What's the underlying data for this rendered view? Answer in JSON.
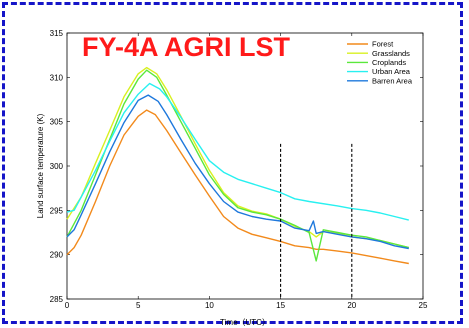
{
  "chart_data": {
    "type": "line",
    "title": "FY-4A AGRI LST",
    "title_color": "#ff1a1a",
    "xlabel": "Time（UTC）",
    "ylabel": "Land surface temperature (K)",
    "xlim": [
      0,
      25
    ],
    "ylim": [
      285,
      315
    ],
    "xticks": [
      "0",
      "5",
      "10",
      "15",
      "20",
      "25"
    ],
    "yticks": [
      "285",
      "290",
      "295",
      "300",
      "305",
      "310",
      "315"
    ],
    "legend_position": "top-right",
    "vlines": [
      15,
      20
    ],
    "series": [
      {
        "name": "Forest",
        "color": "#f28a1c",
        "points": [
          [
            0,
            290.0
          ],
          [
            0.5,
            290.8
          ],
          [
            1,
            292.2
          ],
          [
            2,
            296.0
          ],
          [
            3,
            300.0
          ],
          [
            4,
            303.5
          ],
          [
            5,
            305.6
          ],
          [
            5.6,
            306.3
          ],
          [
            6.2,
            305.8
          ],
          [
            7,
            304.0
          ],
          [
            8,
            301.5
          ],
          [
            9,
            299.0
          ],
          [
            10,
            296.6
          ],
          [
            11,
            294.3
          ],
          [
            12,
            293.0
          ],
          [
            13,
            292.3
          ],
          [
            14,
            291.9
          ],
          [
            15,
            291.5
          ],
          [
            16,
            291.0
          ],
          [
            17,
            290.8
          ],
          [
            17.5,
            290.6
          ],
          [
            18,
            290.6
          ],
          [
            19,
            290.4
          ],
          [
            20,
            290.2
          ],
          [
            21,
            289.9
          ],
          [
            22,
            289.6
          ],
          [
            23,
            289.3
          ],
          [
            24,
            289.0
          ]
        ]
      },
      {
        "name": "Grasslands",
        "color": "#d8f020",
        "points": [
          [
            0,
            294.0
          ],
          [
            1,
            296.5
          ],
          [
            2,
            300.3
          ],
          [
            3,
            304.0
          ],
          [
            4,
            307.8
          ],
          [
            5,
            310.4
          ],
          [
            5.6,
            311.1
          ],
          [
            6.3,
            310.4
          ],
          [
            7,
            308.6
          ],
          [
            8,
            305.6
          ],
          [
            9,
            302.5
          ],
          [
            10,
            299.5
          ],
          [
            11,
            297.0
          ],
          [
            12,
            295.5
          ],
          [
            13,
            294.9
          ],
          [
            14,
            294.6
          ],
          [
            15,
            294.0
          ],
          [
            16,
            293.2
          ],
          [
            17,
            292.6
          ],
          [
            17.5,
            292.0
          ],
          [
            18,
            292.6
          ],
          [
            19,
            292.4
          ],
          [
            20,
            292.0
          ],
          [
            21,
            291.8
          ],
          [
            22,
            291.6
          ],
          [
            23,
            291.2
          ],
          [
            24,
            290.8
          ]
        ]
      },
      {
        "name": "Croplands",
        "color": "#5ae83c",
        "points": [
          [
            0,
            292.0
          ],
          [
            1,
            295.0
          ],
          [
            2,
            299.0
          ],
          [
            3,
            303.0
          ],
          [
            4,
            307.0
          ],
          [
            5,
            309.8
          ],
          [
            5.6,
            310.8
          ],
          [
            6.3,
            310.0
          ],
          [
            7,
            308.0
          ],
          [
            8,
            305.0
          ],
          [
            9,
            302.0
          ],
          [
            10,
            299.0
          ],
          [
            11,
            296.8
          ],
          [
            12,
            295.3
          ],
          [
            13,
            294.8
          ],
          [
            14,
            294.5
          ],
          [
            15,
            294.0
          ],
          [
            16,
            293.3
          ],
          [
            17,
            292.5
          ],
          [
            17.5,
            289.3
          ],
          [
            18,
            292.8
          ],
          [
            19,
            292.5
          ],
          [
            20,
            292.2
          ],
          [
            21,
            292.0
          ],
          [
            22,
            291.6
          ],
          [
            23,
            291.2
          ],
          [
            24,
            290.8
          ]
        ]
      },
      {
        "name": "Urban Area",
        "color": "#28f0f0",
        "points": [
          [
            0,
            294.8
          ],
          [
            0.5,
            295.0
          ],
          [
            1,
            296.5
          ],
          [
            2,
            299.5
          ],
          [
            3,
            302.8
          ],
          [
            4,
            306.0
          ],
          [
            5,
            308.1
          ],
          [
            5.8,
            309.3
          ],
          [
            6.5,
            308.7
          ],
          [
            7,
            307.8
          ],
          [
            8,
            305.5
          ],
          [
            9,
            303.0
          ],
          [
            10,
            300.6
          ],
          [
            11,
            299.3
          ],
          [
            12,
            298.5
          ],
          [
            13,
            298.0
          ],
          [
            14,
            297.5
          ],
          [
            15,
            297.0
          ],
          [
            16,
            296.3
          ],
          [
            17,
            296.0
          ],
          [
            19,
            295.5
          ],
          [
            20,
            295.2
          ],
          [
            21,
            295.0
          ],
          [
            22,
            294.7
          ],
          [
            23,
            294.3
          ],
          [
            24,
            293.9
          ]
        ]
      },
      {
        "name": "Barren Area",
        "color": "#1e78dc",
        "points": [
          [
            0,
            292.0
          ],
          [
            0.5,
            292.8
          ],
          [
            1,
            294.5
          ],
          [
            2,
            298.0
          ],
          [
            3,
            301.6
          ],
          [
            4,
            304.9
          ],
          [
            5,
            307.4
          ],
          [
            5.7,
            308.0
          ],
          [
            6.4,
            307.3
          ],
          [
            7,
            305.8
          ],
          [
            8,
            303.0
          ],
          [
            9,
            300.3
          ],
          [
            10,
            298.0
          ],
          [
            11,
            296.0
          ],
          [
            12,
            294.8
          ],
          [
            13,
            294.3
          ],
          [
            14,
            294.0
          ],
          [
            15,
            293.8
          ],
          [
            16,
            293.0
          ],
          [
            17,
            292.7
          ],
          [
            17.3,
            293.8
          ],
          [
            17.5,
            292.4
          ],
          [
            18,
            292.6
          ],
          [
            19,
            292.3
          ],
          [
            20,
            292.0
          ],
          [
            21,
            291.8
          ],
          [
            22,
            291.5
          ],
          [
            23,
            291.0
          ],
          [
            24,
            290.7
          ]
        ]
      }
    ]
  }
}
